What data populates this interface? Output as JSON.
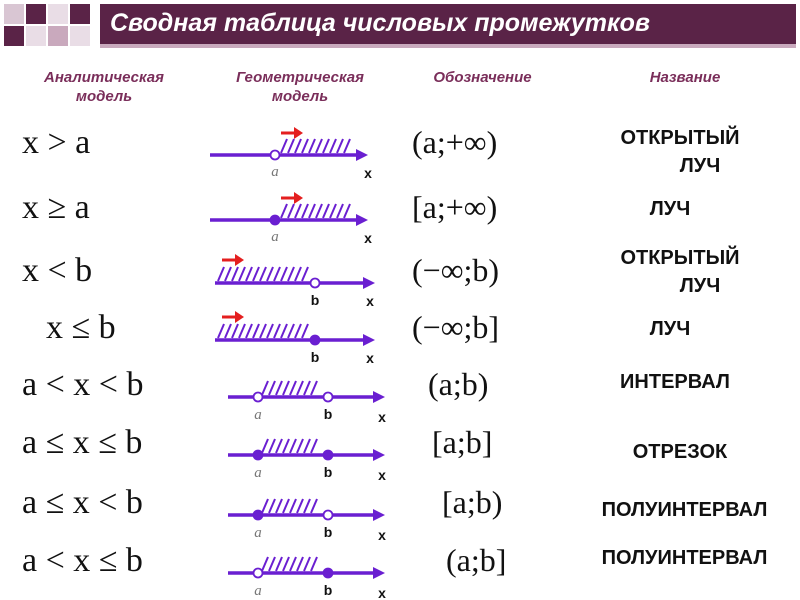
{
  "title": "Сводная таблица числовых промежутков",
  "colors": {
    "header_bg": "#5a2347",
    "accent": "#6a1fd1",
    "arrow": "#e41f1f",
    "heading_text": "#7a2e5a"
  },
  "columns": {
    "analytic": [
      "Аналитическая",
      "модель"
    ],
    "geometric": [
      "Геометрическая",
      "модель"
    ],
    "notation": "Обозначение",
    "name": "Название"
  },
  "rows": [
    {
      "analytic": "x > a",
      "notation": "(a;+∞)",
      "name": [
        "ОТКРЫТЫЙ",
        "ЛУЧ"
      ],
      "left_label": "a",
      "right_label": "",
      "axis_label": "x",
      "left_filled": false,
      "right_filled": false
    },
    {
      "analytic": "x ≥ a",
      "notation": "[a;+∞)",
      "name": [
        "ЛУЧ"
      ],
      "left_label": "a",
      "right_label": "",
      "axis_label": "x",
      "left_filled": true,
      "right_filled": false
    },
    {
      "analytic": "x < b",
      "notation": "(−∞;b)",
      "name": [
        "ОТКРЫТЫЙ",
        "ЛУЧ"
      ],
      "left_label": "",
      "right_label": "b",
      "axis_label": "x",
      "left_filled": false,
      "right_filled": false
    },
    {
      "analytic": "x ≤ b",
      "notation": "(−∞;b]",
      "name": [
        "ЛУЧ"
      ],
      "left_label": "",
      "right_label": "b",
      "axis_label": "x",
      "left_filled": false,
      "right_filled": true
    },
    {
      "analytic": "a < x < b",
      "notation": "(a;b)",
      "name": [
        "ИНТЕРВАЛ"
      ],
      "left_label": "a",
      "right_label": "b",
      "axis_label": "x",
      "left_filled": false,
      "right_filled": false
    },
    {
      "analytic": "a ≤ x ≤ b",
      "notation": "[a;b]",
      "name": [
        "ОТРЕЗОК"
      ],
      "left_label": "a",
      "right_label": "b",
      "axis_label": "x",
      "left_filled": true,
      "right_filled": true
    },
    {
      "analytic": "a ≤ x < b",
      "notation": "[a;b)",
      "name": [
        "ПОЛУИНТЕРВАЛ"
      ],
      "left_label": "a",
      "right_label": "b",
      "axis_label": "x",
      "left_filled": true,
      "right_filled": false
    },
    {
      "analytic": "a < x ≤ b",
      "notation": "(a;b]",
      "name": [
        "ПОЛУИНТЕРВАЛ"
      ],
      "left_label": "a",
      "right_label": "b",
      "axis_label": "x",
      "left_filled": false,
      "right_filled": true
    }
  ]
}
